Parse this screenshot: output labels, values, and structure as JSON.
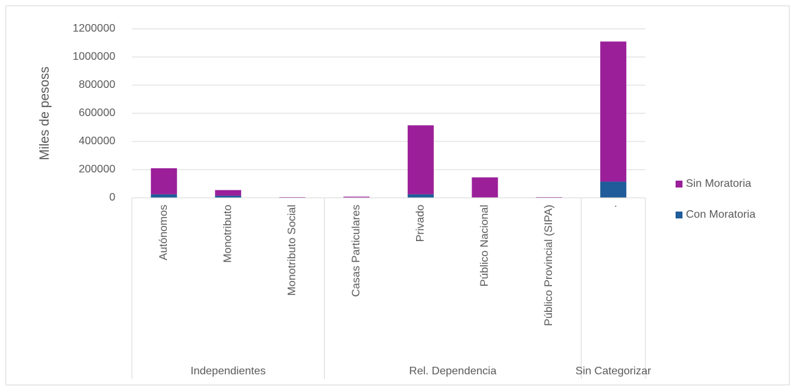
{
  "chart_data": {
    "type": "stacked_bar",
    "y_label": "Miles de pesoss",
    "category_groups": [
      {
        "name": "Independientes",
        "categories": [
          "Autónomos",
          "Monotributo",
          "Monotributo Social"
        ]
      },
      {
        "name": "Rel. Dependencia",
        "categories": [
          "Casas Particulares",
          "Privado",
          "Público Nacional",
          "Público Provincial (SIPA)"
        ]
      },
      {
        "name": "Sin Categorizar",
        "categories": [
          "."
        ]
      }
    ],
    "series": [
      {
        "name": "Con Moratoria",
        "color": "#1f5c99",
        "values": [
          25000,
          15000,
          2000,
          2000,
          25000,
          3000,
          1000,
          115000
        ]
      },
      {
        "name": "Sin Moratoria",
        "color": "#9a1f99",
        "values": [
          185000,
          40000,
          3000,
          6000,
          490000,
          142000,
          4000,
          995000
        ]
      }
    ],
    "ylim": [
      0,
      1200000
    ],
    "yticks": [
      0,
      200000,
      400000,
      600000,
      800000,
      1000000,
      1200000
    ],
    "grid": true,
    "legend": "right"
  }
}
